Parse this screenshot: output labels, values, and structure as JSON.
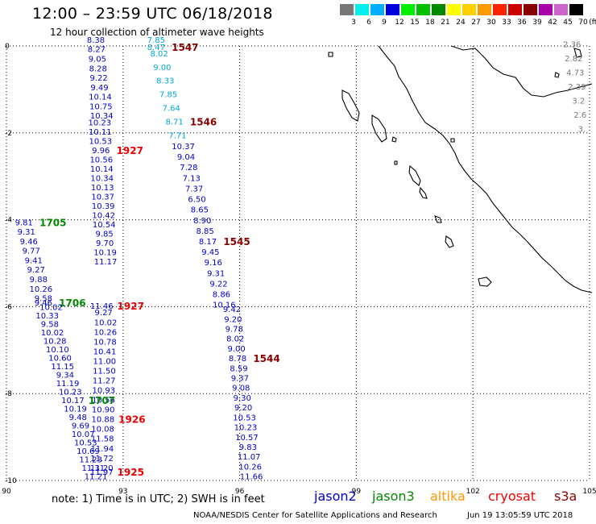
{
  "header": {
    "title": "12:00 – 23:59 UTC 06/18/2018",
    "subtitle": "12 hour collection of altimeter wave heights"
  },
  "legend": {
    "swatches": [
      {
        "color": "#777777",
        "label": "3"
      },
      {
        "color": "#00f0f0",
        "label": "6"
      },
      {
        "color": "#00b0ff",
        "label": "9"
      },
      {
        "color": "#0000dd",
        "label": "12"
      },
      {
        "color": "#00ee00",
        "label": "15"
      },
      {
        "color": "#00c000",
        "label": "18"
      },
      {
        "color": "#008800",
        "label": "21"
      },
      {
        "color": "#ffff00",
        "label": "24"
      },
      {
        "color": "#ffd000",
        "label": "27"
      },
      {
        "color": "#ff9900",
        "label": "30"
      },
      {
        "color": "#ff2200",
        "label": "33"
      },
      {
        "color": "#cc0000",
        "label": "36"
      },
      {
        "color": "#880000",
        "label": "39"
      },
      {
        "color": "#aa00aa",
        "label": "42"
      },
      {
        "color": "#cc66cc",
        "label": "45"
      },
      {
        "color": "#000000",
        "label": "70"
      }
    ],
    "unit": "(ft)"
  },
  "axes": {
    "lon_ticks": [
      "90",
      "93",
      "96",
      "99",
      "102",
      "105"
    ],
    "lat_ticks": [
      "0",
      "-2",
      "-4",
      "-6",
      "-8",
      "-10"
    ]
  },
  "colors": {
    "jason2": "#0000cc",
    "jason3": "#008800",
    "altika": "#ff9900",
    "cryosat": "#ee0000",
    "s3a": "#880000",
    "lightblue": "#00a8d8",
    "gray": "#777777"
  },
  "tracks": [
    {
      "name": "cryosat-1928",
      "color": "#0000cc",
      "label": "1928",
      "label_color": "#ee0000",
      "label_row": 9,
      "lon_start": 92.3,
      "lon_end": 92.45,
      "lat_start": 0.15,
      "lat_end": -1.6,
      "values": [
        "8.38",
        "8.27",
        "9.05",
        "8.28",
        "9.22",
        "9.49",
        "10.14",
        "10.75",
        "10.34"
      ]
    },
    {
      "name": "cryosat-1927a",
      "color": "#0000cc",
      "label": "1927",
      "label_color": "#ee0000",
      "label_row": 3,
      "lon_start": 92.4,
      "lon_end": 92.55,
      "lat_start": -1.75,
      "lat_end": -4.95,
      "values": [
        "10.23",
        "10.11",
        "10.53",
        "9.96",
        "10.56",
        "10.14",
        "10.34",
        "10.13",
        "10.37",
        "10.39",
        "10.42",
        "10.54",
        "9.85",
        "9.70",
        "10.19",
        "11.17"
      ]
    },
    {
      "name": "cryosat-1927b",
      "color": "#0000cc",
      "label": "1927",
      "label_color": "#ee0000",
      "label_row": 0,
      "lon_start": 92.45,
      "lon_end": 92.5,
      "lat_start": -5.97,
      "lat_end": -6.12,
      "values": [
        "11.46",
        "9.27"
      ]
    },
    {
      "name": "cryosat-1926",
      "color": "#0000cc",
      "label": "1926",
      "label_color": "#ee0000",
      "label_row": 10,
      "lon_start": 92.55,
      "lon_end": 92.45,
      "lat_start": -6.35,
      "lat_end": -9.7,
      "values": [
        "10.02",
        "10.26",
        "10.78",
        "10.41",
        "11.00",
        "11.50",
        "11.27",
        "10.93",
        "10.56",
        "10.90",
        "10.88",
        "10.08",
        "11.58",
        "11.94",
        "11.72",
        "11.20"
      ]
    },
    {
      "name": "cryosat-1925",
      "color": "#0000cc",
      "label": "1925",
      "label_color": "#ee0000",
      "label_row": 0,
      "lon_start": 92.45,
      "lon_end": 92.45,
      "lat_start": -9.8,
      "lat_end": -9.8,
      "values": [
        "11.97"
      ]
    },
    {
      "name": "jason3-1705",
      "color": "#0000cc",
      "label": "1705",
      "label_color": "#008800",
      "label_row": 0,
      "lon_start": 90.45,
      "lon_end": 90.95,
      "lat_start": -4.05,
      "lat_end": -5.8,
      "values": [
        "9.81",
        "9.31",
        "9.46",
        "9.77",
        "9.41",
        "9.27",
        "9.88",
        "10.26",
        "9.58"
      ]
    },
    {
      "name": "jason3-1706",
      "color": "#0000cc",
      "label": "1706",
      "label_color": "#008800",
      "label_row": 0,
      "lon_start": 90.95,
      "lon_end": 91.15,
      "lat_start": -5.9,
      "lat_end": -6.0,
      "values": [
        "9.46",
        "10.02"
      ]
    },
    {
      "name": "jason3-1707",
      "color": "#0000cc",
      "label": "1707",
      "label_color": "#008800",
      "label_row": 10,
      "lon_start": 91.05,
      "lon_end": 92.3,
      "lat_start": -6.2,
      "lat_end": -9.9,
      "values": [
        "10.33",
        "9.58",
        "10.02",
        "10.28",
        "10.10",
        "10.60",
        "11.15",
        "9.34",
        "11.19",
        "10.23",
        "10.17",
        "10.19",
        "9.48",
        "9.69",
        "10.07",
        "10.53",
        "10.69",
        "11.23",
        "11.31",
        "11.21"
      ]
    },
    {
      "name": "s3a-1547",
      "color": "#00a8d8",
      "label": "1547",
      "label_color": "#880000",
      "label_row": 0,
      "lon_start": 93.85,
      "lon_end": 93.85,
      "lat_start": -0.02,
      "lat_end": -0.02,
      "values": [
        "8.47"
      ]
    },
    {
      "name": "s3a-1546",
      "color": "#00a8d8",
      "label": "1546",
      "label_color": "#880000",
      "label_row": 6,
      "lon_start": 93.85,
      "lon_end": 94.4,
      "lat_start": 0.15,
      "lat_end": -2.05,
      "values": [
        "7.85",
        "8.02",
        "9.00",
        "8.33",
        "7.85",
        "7.64",
        "8.71",
        "7.71"
      ]
    },
    {
      "name": "s3a-1545",
      "color": "#0000cc",
      "label": "1545",
      "label_color": "#880000",
      "label_row": 9,
      "lon_start": 94.55,
      "lon_end": 95.6,
      "lat_start": -2.3,
      "lat_end": -5.95,
      "values": [
        "10.37",
        "9.04",
        "7.28",
        "7.13",
        "7.37",
        "6.50",
        "8.65",
        "8.90",
        "8.85",
        "8.17",
        "9.45",
        "9.16",
        "9.31",
        "9.22",
        "8.86",
        "10.16"
      ]
    },
    {
      "name": "s3a-1544",
      "color": "#0000cc",
      "label": "1544",
      "label_color": "#880000",
      "label_row": 5,
      "lon_start": 95.8,
      "lon_end": 96.3,
      "lat_start": -6.05,
      "lat_end": -9.9,
      "values": [
        "9.42",
        "9.20",
        "9.78",
        "8.02",
        "9.00",
        "8.78",
        "8.59",
        "9.37",
        "9.08",
        "9.30",
        "9.20",
        "10.53",
        "10.23",
        "10.57",
        "9.83",
        "11.07",
        "10.26",
        "11.66"
      ]
    },
    {
      "name": "edge-track",
      "color": "#777777",
      "label": "",
      "label_color": "#777777",
      "label_row": 0,
      "lon_start": 104.55,
      "lon_end": 104.8,
      "lat_start": 0.05,
      "lat_end": -1.9,
      "values": [
        "2.36",
        "2.82",
        "4.73",
        "2.39",
        "3.2",
        "2.6",
        "3."
      ]
    }
  ],
  "footer": {
    "note": "note: 1) Time is in UTC; 2) SWH is in feet",
    "satellites": [
      {
        "name": "jason2",
        "color": "#0000cc"
      },
      {
        "name": "jason3",
        "color": "#008800"
      },
      {
        "name": "altika",
        "color": "#ff9900"
      },
      {
        "name": "cryosat",
        "color": "#ee0000"
      },
      {
        "name": "s3a",
        "color": "#880000"
      }
    ],
    "credit": "NOAA/NESDIS Center for Satellite Applications and Research",
    "timestamp": "Jun 19 13:05:59 UTC 2018"
  }
}
